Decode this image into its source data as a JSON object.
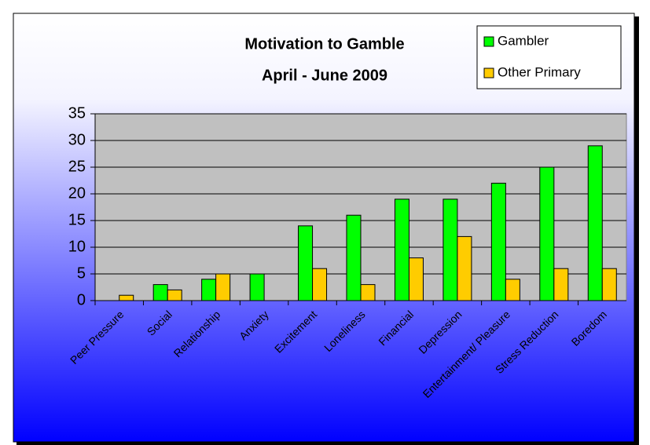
{
  "chart_data": {
    "type": "bar",
    "title": "Motivation to Gamble",
    "subtitle": "April - June 2009",
    "categories": [
      "Peer Pressure",
      "Social",
      "Relationship",
      "Anxiety",
      "Excitement",
      "Loneliness",
      "Financial",
      "Depression",
      "Entertainment/ Pleasure",
      "Stress Reduction",
      "Boredom"
    ],
    "series": [
      {
        "name": "Gambler",
        "color": "#00ff00",
        "values": [
          0,
          3,
          4,
          5,
          14,
          16,
          19,
          19,
          22,
          25,
          29
        ]
      },
      {
        "name": "Other Primary",
        "color": "#ffcc00",
        "values": [
          1,
          2,
          5,
          0,
          6,
          3,
          8,
          12,
          4,
          6,
          6
        ]
      }
    ],
    "ylim": [
      0,
      35
    ],
    "yticks": [
      0,
      5,
      10,
      15,
      20,
      25,
      30,
      35
    ],
    "grid": true,
    "legend": "top-right"
  }
}
